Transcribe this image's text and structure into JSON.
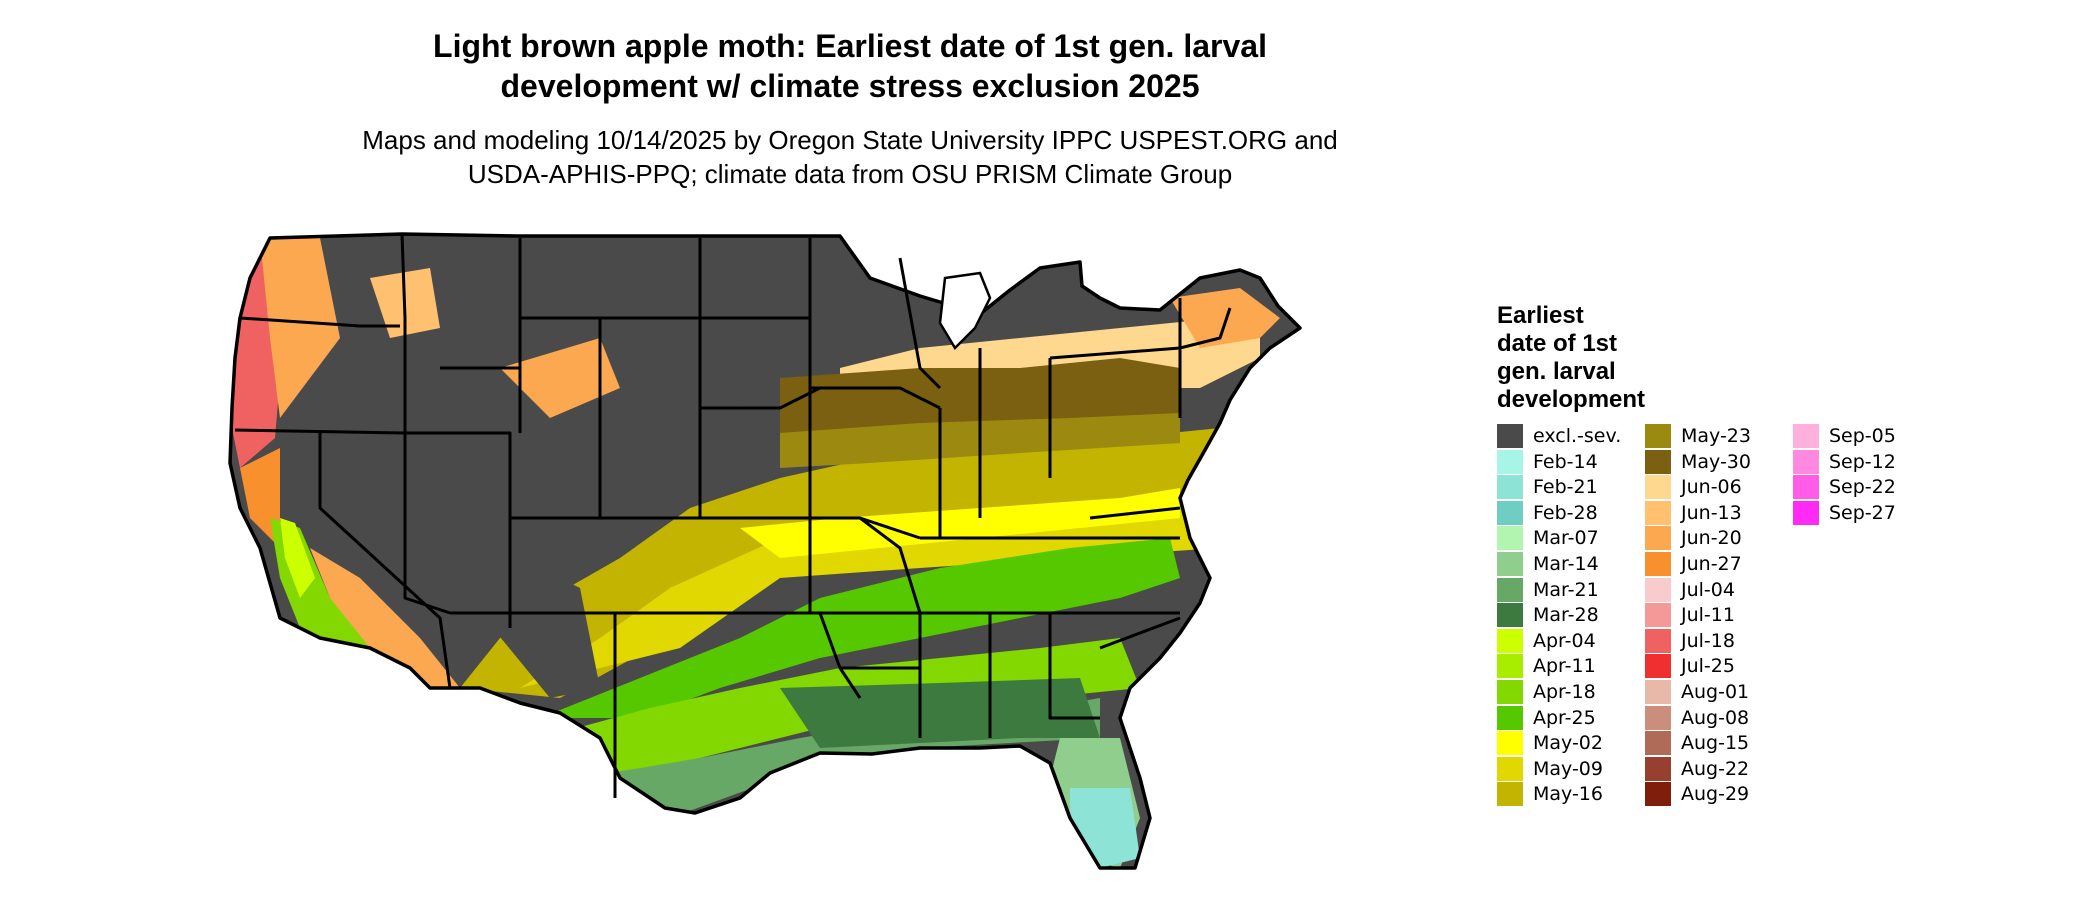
{
  "title": [
    "Light brown apple moth: Earliest date of 1st gen. larval",
    "development w/ climate stress exclusion 2025"
  ],
  "subtitle": [
    "Maps and modeling 10/14/2025 by Oregon State University IPPC USPEST.ORG and",
    "USDA-APHIS-PPQ; climate data from OSU PRISM Climate Group"
  ],
  "legend": {
    "title": [
      "Earliest",
      "date of 1st",
      "gen. larval",
      "development"
    ],
    "items": [
      {
        "label": "excl.-sev.",
        "color": "#4a4a4a"
      },
      {
        "label": "Feb-14",
        "color": "#a6f5e6"
      },
      {
        "label": "Feb-21",
        "color": "#8ce3d6"
      },
      {
        "label": "Feb-28",
        "color": "#6fcdc3"
      },
      {
        "label": "Mar-07",
        "color": "#b2f5b0"
      },
      {
        "label": "Mar-14",
        "color": "#8fce8d"
      },
      {
        "label": "Mar-21",
        "color": "#68a866"
      },
      {
        "label": "Mar-28",
        "color": "#3d7a3f"
      },
      {
        "label": "Apr-04",
        "color": "#ccff00"
      },
      {
        "label": "Apr-11",
        "color": "#a8ec00"
      },
      {
        "label": "Apr-18",
        "color": "#82d800"
      },
      {
        "label": "Apr-25",
        "color": "#56c800"
      },
      {
        "label": "May-02",
        "color": "#ffff00"
      },
      {
        "label": "May-09",
        "color": "#e0d800"
      },
      {
        "label": "May-16",
        "color": "#c2b400"
      },
      {
        "label": "May-23",
        "color": "#9c8a10"
      },
      {
        "label": "May-30",
        "color": "#7a6010"
      },
      {
        "label": "Jun-06",
        "color": "#ffd890"
      },
      {
        "label": "Jun-13",
        "color": "#ffc070"
      },
      {
        "label": "Jun-20",
        "color": "#fca850"
      },
      {
        "label": "Jun-27",
        "color": "#f8902e"
      },
      {
        "label": "Jul-04",
        "color": "#f8cccc"
      },
      {
        "label": "Jul-11",
        "color": "#f49898"
      },
      {
        "label": "Jul-18",
        "color": "#f06262"
      },
      {
        "label": "Jul-25",
        "color": "#f03030"
      },
      {
        "label": "Aug-01",
        "color": "#e8b8a8"
      },
      {
        "label": "Aug-08",
        "color": "#cc8e7c"
      },
      {
        "label": "Aug-15",
        "color": "#b06a58"
      },
      {
        "label": "Aug-22",
        "color": "#984030"
      },
      {
        "label": "Aug-29",
        "color": "#801e0c"
      },
      {
        "label": "Sep-05",
        "color": "#ffb0dc"
      },
      {
        "label": "Sep-12",
        "color": "#ff88e0"
      },
      {
        "label": "Sep-22",
        "color": "#ff5ce8"
      },
      {
        "label": "Sep-27",
        "color": "#ff2af4"
      }
    ]
  }
}
